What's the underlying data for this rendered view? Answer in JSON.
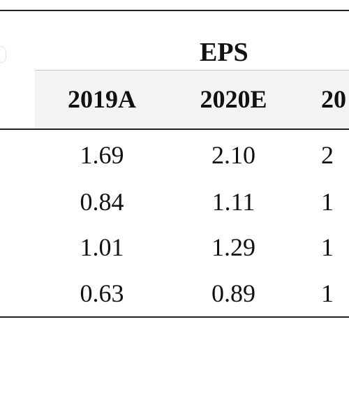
{
  "table": {
    "group_header": "EPS",
    "columns": [
      "2019A",
      "2020E",
      "20"
    ],
    "rows": [
      [
        "1.69",
        "2.10",
        "2"
      ],
      [
        "0.84",
        "1.11",
        "1"
      ],
      [
        "1.01",
        "1.29",
        "1"
      ],
      [
        "0.63",
        "0.89",
        "1"
      ]
    ]
  }
}
